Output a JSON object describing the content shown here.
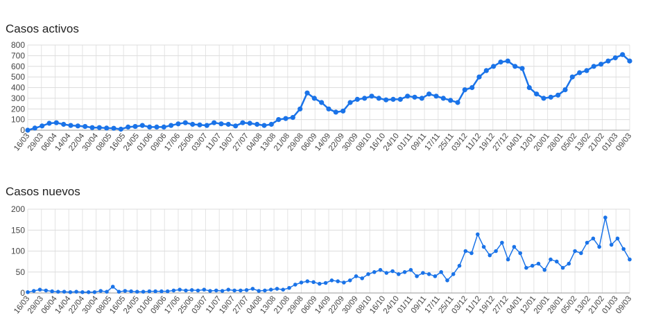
{
  "chart_data": [
    {
      "type": "line",
      "title": "Casos activos",
      "xlabel": "",
      "ylabel": "",
      "ylim": [
        0,
        800
      ],
      "yticks": [
        "0",
        "100",
        "200",
        "300",
        "400",
        "500",
        "600",
        "700",
        "800"
      ],
      "grid": true,
      "color": "#1a73e8",
      "x_tick_labels": [
        "16/03",
        "29/03",
        "06/04",
        "14/04",
        "22/04",
        "30/04",
        "08/05",
        "16/05",
        "24/05",
        "01/06",
        "09/06",
        "17/06",
        "25/06",
        "03/07",
        "11/07",
        "19/07",
        "27/07",
        "04/08",
        "13/08",
        "21/08",
        "29/08",
        "06/09",
        "14/09",
        "22/09",
        "30/09",
        "08/10",
        "16/10",
        "24/10",
        "01/11",
        "09/11",
        "17/11",
        "25/11",
        "03/12",
        "11/12",
        "19/12",
        "27/12",
        "04/01",
        "12/01",
        "20/01",
        "28/01",
        "05/02",
        "13/02",
        "21/02",
        "01/03",
        "09/03"
      ],
      "series": [
        {
          "values": [
            0,
            20,
            40,
            65,
            70,
            55,
            45,
            40,
            35,
            25,
            25,
            20,
            18,
            10,
            30,
            35,
            45,
            30,
            30,
            30,
            45,
            60,
            70,
            55,
            50,
            45,
            70,
            60,
            55,
            40,
            70,
            65,
            55,
            45,
            55,
            100,
            110,
            120,
            200,
            350,
            300,
            260,
            200,
            170,
            180,
            260,
            290,
            300,
            320,
            300,
            285,
            290,
            290,
            320,
            310,
            300,
            340,
            320,
            300,
            280,
            260,
            380,
            400,
            500,
            560,
            600,
            640,
            650,
            600,
            580,
            400,
            340,
            300,
            310,
            330,
            380,
            500,
            540,
            560,
            600,
            620,
            650,
            680,
            710,
            650
          ]
        }
      ]
    },
    {
      "type": "line",
      "title": "Casos nuevos",
      "xlabel": "",
      "ylabel": "",
      "ylim": [
        0,
        200
      ],
      "yticks": [
        "0",
        "50",
        "100",
        "150",
        "200"
      ],
      "grid": true,
      "color": "#1a73e8",
      "x_tick_labels": [
        "16/03",
        "29/03",
        "06/04",
        "14/04",
        "22/04",
        "30/04",
        "08/05",
        "16/05",
        "24/05",
        "01/06",
        "09/06",
        "17/06",
        "25/06",
        "03/07",
        "11/07",
        "19/07",
        "27/07",
        "04/08",
        "13/08",
        "21/08",
        "29/08",
        "06/09",
        "14/09",
        "22/09",
        "30/09",
        "08/10",
        "16/10",
        "24/10",
        "01/11",
        "09/11",
        "17/11",
        "25/11",
        "03/12",
        "11/12",
        "19/12",
        "27/12",
        "04/01",
        "12/01",
        "20/01",
        "28/01",
        "05/02",
        "13/02",
        "21/02",
        "01/03",
        "09/03"
      ],
      "series": [
        {
          "values": [
            2,
            5,
            8,
            6,
            4,
            3,
            3,
            2,
            3,
            2,
            2,
            2,
            5,
            3,
            15,
            3,
            5,
            4,
            3,
            3,
            4,
            4,
            4,
            4,
            6,
            8,
            6,
            7,
            6,
            8,
            5,
            6,
            5,
            8,
            6,
            6,
            7,
            10,
            5,
            6,
            8,
            10,
            8,
            12,
            20,
            25,
            28,
            26,
            22,
            24,
            30,
            28,
            25,
            30,
            40,
            35,
            45,
            50,
            55,
            48,
            52,
            45,
            50,
            55,
            40,
            48,
            45,
            40,
            50,
            30,
            45,
            65,
            100,
            95,
            140,
            110,
            90,
            100,
            120,
            80,
            110,
            95,
            60,
            65,
            70,
            55,
            80,
            75,
            60,
            70,
            100,
            95,
            120,
            130,
            110,
            180,
            115,
            130,
            105,
            80
          ]
        }
      ]
    }
  ]
}
